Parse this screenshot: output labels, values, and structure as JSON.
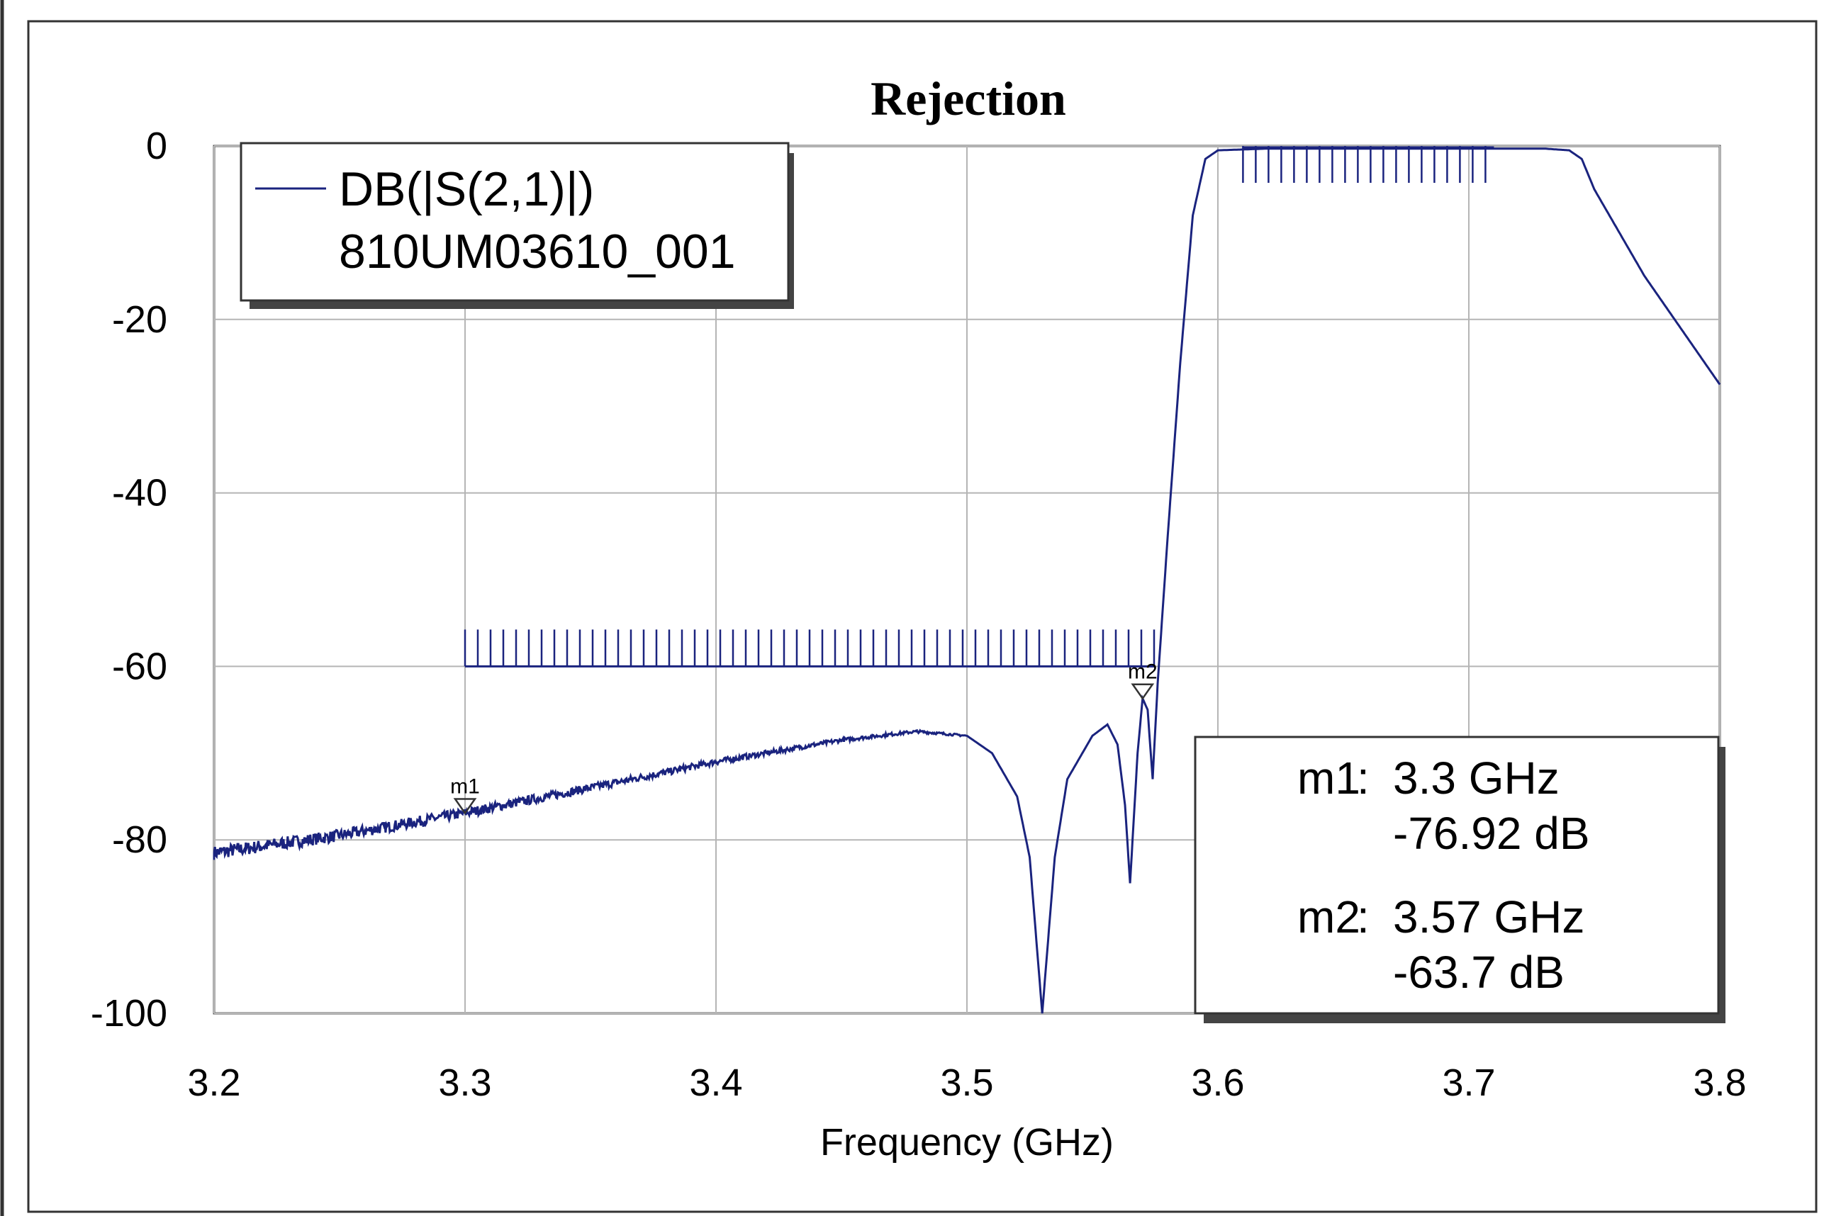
{
  "chart_data": {
    "type": "line",
    "title": "Rejection",
    "xlabel": "Frequency (GHz)",
    "ylabel": "",
    "xlim": [
      3.2,
      3.8
    ],
    "ylim": [
      -100,
      0
    ],
    "x_ticks": [
      "3.2",
      "3.3",
      "3.4",
      "3.5",
      "3.6",
      "3.7",
      "3.8"
    ],
    "y_ticks": [
      "0",
      "-20",
      "-40",
      "-60",
      "-80",
      "-100"
    ],
    "grid": true,
    "legend_position": "top-left",
    "series": [
      {
        "name": "DB(|S(2,1)|)",
        "subtitle": "810UM03610_001",
        "color": "#1a237e",
        "x": [
          3.2,
          3.25,
          3.3,
          3.35,
          3.4,
          3.45,
          3.48,
          3.5,
          3.51,
          3.52,
          3.525,
          3.53,
          3.535,
          3.54,
          3.55,
          3.556,
          3.56,
          3.563,
          3.565,
          3.568,
          3.57,
          3.572,
          3.574,
          3.576,
          3.58,
          3.585,
          3.59,
          3.595,
          3.6,
          3.62,
          3.65,
          3.7,
          3.73,
          3.74,
          3.745,
          3.75,
          3.77,
          3.8
        ],
        "values": [
          -81.5,
          -79.5,
          -76.9,
          -74.0,
          -71.0,
          -68.5,
          -67.5,
          -68.0,
          -70.0,
          -75.0,
          -82.0,
          -100.0,
          -82.0,
          -73.0,
          -68.0,
          -66.7,
          -69.0,
          -76.0,
          -85.0,
          -70.0,
          -63.7,
          -65.0,
          -73.0,
          -62.0,
          -45.0,
          -25.0,
          -8.0,
          -1.5,
          -0.5,
          -0.3,
          -0.3,
          -0.3,
          -0.3,
          -0.5,
          -1.5,
          -5.0,
          -15.0,
          -27.5
        ]
      }
    ],
    "masks": [
      {
        "x_start": 3.3,
        "x_end": 3.575,
        "y": -60
      },
      {
        "x_start": 3.61,
        "x_end": 3.71,
        "y": 0
      }
    ],
    "markers": [
      {
        "name": "m1",
        "x": 3.3,
        "y": -76.92,
        "freq_text": "3.3 GHz",
        "value_text": "-76.92 dB"
      },
      {
        "name": "m2",
        "x": 3.57,
        "y": -63.7,
        "freq_text": "3.57 GHz",
        "value_text": "-63.7 dB"
      }
    ]
  }
}
